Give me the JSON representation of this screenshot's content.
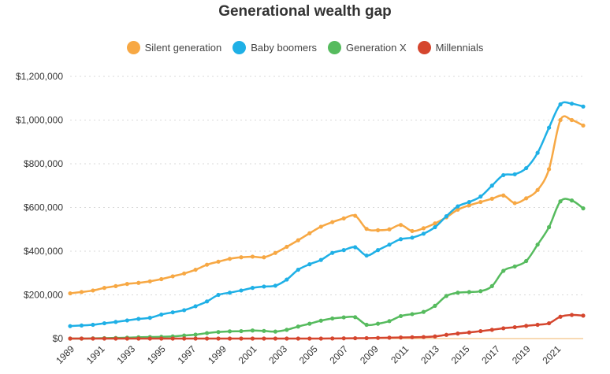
{
  "chart_data": {
    "type": "line",
    "title": "Generational wealth gap",
    "xlabel": "",
    "ylabel": "",
    "ylim": [
      0,
      1200000
    ],
    "y_ticks": [
      "$0",
      "$200,000",
      "$400,000",
      "$600,000",
      "$800,000",
      "$1,000,000",
      "$1,200,000"
    ],
    "x_ticks": [
      "1989",
      "1991",
      "1993",
      "1995",
      "1997",
      "1999",
      "2001",
      "2003",
      "2005",
      "2007",
      "2009",
      "2011",
      "2013",
      "2015",
      "2017",
      "2019",
      "2021"
    ],
    "grid": "horizontal dotted",
    "legend_position": "top-center",
    "x": [
      1989.0,
      1989.75,
      1990.5,
      1991.25,
      1992.0,
      1992.75,
      1993.5,
      1994.25,
      1995.0,
      1995.75,
      1996.5,
      1997.25,
      1998.0,
      1998.75,
      1999.5,
      2000.25,
      2001.0,
      2001.75,
      2002.5,
      2003.25,
      2004.0,
      2004.75,
      2005.5,
      2006.25,
      2007.0,
      2007.75,
      2008.5,
      2009.25,
      2010.0,
      2010.75,
      2011.5,
      2012.25,
      2013.0,
      2013.75,
      2014.5,
      2015.25,
      2016.0,
      2016.75,
      2017.5,
      2018.25,
      2019.0,
      2019.75,
      2020.5,
      2021.25,
      2022.0,
      2022.75
    ],
    "series": [
      {
        "name": "Silent generation",
        "color": "#f7a844",
        "values": [
          207000,
          213000,
          220000,
          232000,
          240000,
          250000,
          255000,
          262000,
          272000,
          285000,
          298000,
          315000,
          338000,
          352000,
          365000,
          372000,
          375000,
          372000,
          392000,
          420000,
          450000,
          482000,
          512000,
          533000,
          550000,
          562000,
          502000,
          496000,
          500000,
          520000,
          492000,
          505000,
          527000,
          555000,
          590000,
          610000,
          625000,
          640000,
          655000,
          620000,
          642000,
          680000,
          775000,
          1000000,
          1000000,
          975000
        ]
      },
      {
        "name": "Baby boomers",
        "color": "#1fb0e6",
        "values": [
          57000,
          60000,
          63000,
          70000,
          76000,
          83000,
          90000,
          95000,
          110000,
          120000,
          130000,
          148000,
          170000,
          200000,
          210000,
          220000,
          232000,
          238000,
          242000,
          270000,
          315000,
          340000,
          360000,
          392000,
          405000,
          418000,
          380000,
          405000,
          430000,
          455000,
          462000,
          480000,
          510000,
          560000,
          605000,
          625000,
          650000,
          700000,
          748000,
          752000,
          780000,
          850000,
          965000,
          1072000,
          1075000,
          1062000
        ]
      },
      {
        "name": "Generation X",
        "color": "#56bb5e",
        "values": [
          0,
          0,
          1000,
          2000,
          3000,
          4000,
          6000,
          7000,
          8000,
          10000,
          14000,
          18000,
          25000,
          30000,
          33000,
          34000,
          37000,
          35000,
          32000,
          40000,
          55000,
          68000,
          82000,
          92000,
          97000,
          98000,
          63000,
          68000,
          80000,
          103000,
          112000,
          122000,
          150000,
          195000,
          210000,
          213000,
          217000,
          240000,
          310000,
          330000,
          355000,
          430000,
          510000,
          628000,
          632000,
          596000
        ]
      },
      {
        "name": "Millennials",
        "color": "#d5462e",
        "values": [
          0,
          0,
          0,
          0,
          0,
          0,
          0,
          0,
          0,
          0,
          0,
          0,
          0,
          0,
          0,
          0,
          0,
          0,
          0,
          0,
          0,
          0,
          0,
          500,
          1000,
          1500,
          2000,
          3000,
          4000,
          5000,
          6000,
          7000,
          10000,
          17000,
          23000,
          28000,
          34000,
          40000,
          47000,
          52000,
          58000,
          63000,
          70000,
          100000,
          108000,
          105000
        ]
      }
    ]
  }
}
